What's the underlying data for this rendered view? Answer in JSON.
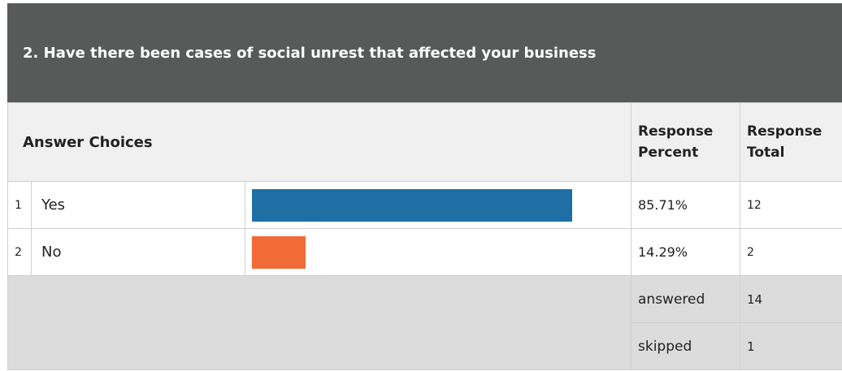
{
  "question": {
    "title": "2. Have there been cases of social unrest that affected your business"
  },
  "table": {
    "head": {
      "answer_choices": "Answer Choices",
      "percent": "Response Percent",
      "total": "Response Total"
    },
    "rows": [
      {
        "num": "1",
        "label": "Yes",
        "percent": "85.71%",
        "total": "12",
        "fraction": 0.8571,
        "color": "#1f6fa5"
      },
      {
        "num": "2",
        "label": "No",
        "percent": "14.29%",
        "total": "2",
        "fraction": 0.1429,
        "color": "#f26a35"
      }
    ],
    "summary": {
      "answered_label": "answered",
      "answered_value": "14",
      "skipped_label": "skipped",
      "skipped_value": "1"
    }
  }
}
